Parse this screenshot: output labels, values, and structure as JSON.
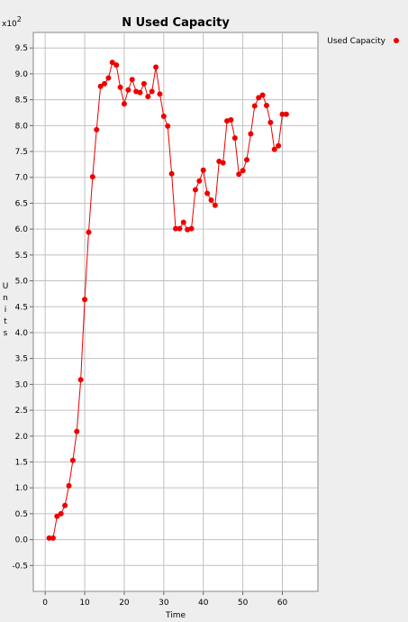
{
  "chart_data": {
    "type": "line",
    "title": "N Used Capacity",
    "xlabel": "Time",
    "ylabel": "Units",
    "y_multiplier_label": "x10",
    "y_multiplier_exp": "2",
    "xlim": [
      -3,
      69
    ],
    "ylim": [
      -1.0,
      9.8
    ],
    "x_ticks": [
      0,
      10,
      20,
      30,
      40,
      50,
      60
    ],
    "y_ticks": [
      -0.5,
      0.0,
      0.5,
      1.0,
      1.5,
      2.0,
      2.5,
      3.0,
      3.5,
      4.0,
      4.5,
      5.0,
      5.5,
      6.0,
      6.5,
      7.0,
      7.5,
      8.0,
      8.5,
      9.0,
      9.5
    ],
    "grid": true,
    "legend_position": "top-right",
    "series": [
      {
        "name": "Used Capacity",
        "color": "#ee0000",
        "x": [
          1,
          2,
          3,
          4,
          5,
          6,
          7,
          8,
          9,
          10,
          11,
          12,
          13,
          14,
          15,
          16,
          17,
          18,
          19,
          20,
          21,
          22,
          23,
          24,
          25,
          26,
          27,
          28,
          29,
          30,
          31,
          32,
          33,
          34,
          35,
          36,
          37,
          38,
          39,
          40,
          41,
          42,
          43,
          44,
          45,
          46,
          47,
          48,
          49,
          50,
          51,
          52,
          53,
          54,
          55,
          56,
          57,
          58,
          59,
          60,
          61
        ],
        "y": [
          0.03,
          0.03,
          0.45,
          0.5,
          0.66,
          1.04,
          1.53,
          2.09,
          3.09,
          4.64,
          5.94,
          7.01,
          7.92,
          8.76,
          8.81,
          8.92,
          9.22,
          9.17,
          8.74,
          8.42,
          8.69,
          8.89,
          8.66,
          8.64,
          8.81,
          8.56,
          8.66,
          9.13,
          8.61,
          8.18,
          7.99,
          7.07,
          6.01,
          6.01,
          6.13,
          5.99,
          6.01,
          6.76,
          6.93,
          7.14,
          6.69,
          6.56,
          6.46,
          7.31,
          7.28,
          8.09,
          8.11,
          7.76,
          7.06,
          7.13,
          7.34,
          7.84,
          8.38,
          8.54,
          8.59,
          8.39,
          8.06,
          7.54,
          7.61,
          8.22,
          8.22
        ]
      }
    ]
  }
}
